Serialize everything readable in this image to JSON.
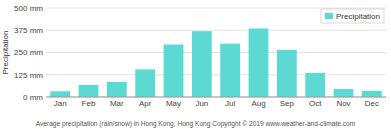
{
  "chart_data": {
    "type": "bar",
    "ylabel": "Precipitation",
    "caption": "Average precipitation (rain/snow) in Hong Kong, Hong Kong   Copyright © 2019 www.weather-and-climate.com",
    "categories": [
      "Jan",
      "Feb",
      "Mar",
      "Apr",
      "May",
      "Jun",
      "Jul",
      "Aug",
      "Sep",
      "Oct",
      "Nov",
      "Dec"
    ],
    "series": [
      {
        "name": "Precipitation",
        "color": "#5dd9d4",
        "values": [
          32,
          68,
          85,
          155,
          295,
          370,
          300,
          385,
          265,
          135,
          45,
          35
        ]
      }
    ],
    "ylim": [
      0,
      500
    ],
    "yticks": [
      {
        "value": 0,
        "label": "0 mm"
      },
      {
        "value": 125,
        "label": "125 mm"
      },
      {
        "value": 250,
        "label": "250 mm"
      },
      {
        "value": 375,
        "label": "375 mm"
      },
      {
        "value": 500,
        "label": "500 mm"
      }
    ],
    "grid": true,
    "legend": "upper right"
  }
}
